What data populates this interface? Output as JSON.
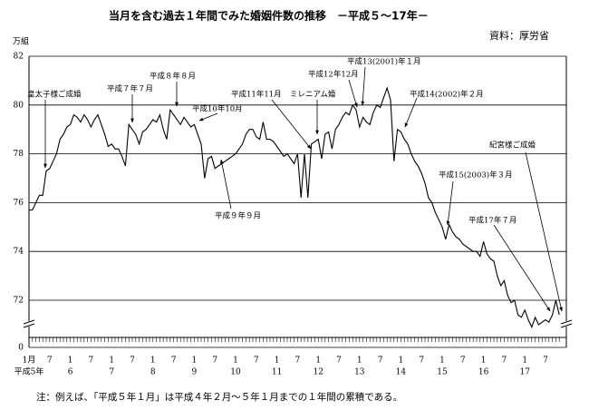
{
  "chart_data": {
    "type": "line",
    "title": "当月を含む過去１年間でみた婚姻件数の推移　－平成５～17年－",
    "source": "資料：厚労省",
    "y_label": "万組",
    "note": "注：例えば、「平成５年１月」は平成４年２月～５年１月までの１年間の累積である。",
    "categories": [
      "1月",
      null,
      null,
      null,
      null,
      null,
      "7",
      null,
      null,
      null,
      null,
      null,
      "1",
      null,
      null,
      null,
      null,
      null,
      "7",
      null,
      null,
      null,
      null,
      null,
      "1",
      null,
      null,
      null,
      null,
      null,
      "7",
      null,
      null,
      null,
      null,
      null,
      "1",
      null,
      null,
      null,
      null,
      null,
      "7",
      null,
      null,
      null,
      null,
      null,
      "1",
      null,
      null,
      null,
      null,
      null,
      "7",
      null,
      null,
      null,
      null,
      null,
      "1",
      null,
      null,
      null,
      null,
      null,
      "7",
      null,
      null,
      null,
      null,
      null,
      "1",
      null,
      null,
      null,
      null,
      null,
      "7",
      null,
      null,
      null,
      null,
      null,
      "1",
      null,
      null,
      null,
      null,
      null,
      "7",
      null,
      null,
      null,
      null,
      null,
      "1",
      null,
      null,
      null,
      null,
      null,
      "7",
      null,
      null,
      null,
      null,
      null,
      "1",
      null,
      null,
      null,
      null,
      null,
      "7",
      null,
      null,
      null,
      null,
      null,
      "1",
      null,
      null,
      null,
      null,
      null,
      "7",
      null,
      null,
      null,
      null,
      null,
      "1",
      null,
      null,
      null,
      null,
      null,
      "7",
      null,
      null,
      null,
      null,
      null,
      "1",
      null,
      null,
      null,
      null,
      null,
      "7",
      null,
      null,
      null,
      null
    ],
    "category_groups": [
      "平成5年",
      "6",
      "7",
      "8",
      "9",
      "10",
      "11",
      "12",
      "13",
      "14",
      "15",
      "16",
      "17"
    ],
    "series": [
      {
        "name": "婚姻件数",
        "color": "#000000",
        "values": [
          75.7,
          75.7,
          76.0,
          76.3,
          76.3,
          77.3,
          77.4,
          77.7,
          78.0,
          78.6,
          78.8,
          79.1,
          79.2,
          79.6,
          79.5,
          79.3,
          79.6,
          79.4,
          79.1,
          79.4,
          79.6,
          79.2,
          78.8,
          78.3,
          78.4,
          78.2,
          78.2,
          77.9,
          77.5,
          79.2,
          79.0,
          78.8,
          78.4,
          78.9,
          79.0,
          79.2,
          79.4,
          79.3,
          79.6,
          79.0,
          78.6,
          79.8,
          79.6,
          79.4,
          79.2,
          79.5,
          79.3,
          79.1,
          79.2,
          78.8,
          78.4,
          77.0,
          77.8,
          77.9,
          77.4,
          77.5,
          77.6,
          77.7,
          77.8,
          77.9,
          78.0,
          78.2,
          78.4,
          78.8,
          79.0,
          79.0,
          78.7,
          78.6,
          79.3,
          78.6,
          78.6,
          78.5,
          78.3,
          78.1,
          77.9,
          78.0,
          77.8,
          77.6,
          78.0,
          76.2,
          78.0,
          76.2,
          78.4,
          78.5,
          78.6,
          77.8,
          78.8,
          78.9,
          78.2,
          79.0,
          79.2,
          79.5,
          79.7,
          79.6,
          80.0,
          79.8,
          79.1,
          79.5,
          79.3,
          79.2,
          79.7,
          80.0,
          79.9,
          80.3,
          80.7,
          80.2,
          77.7,
          79.0,
          78.9,
          78.6,
          78.4,
          78.0,
          77.7,
          77.5,
          77.2,
          76.8,
          76.2,
          76.0,
          75.6,
          75.3,
          75.0,
          74.5,
          75.1,
          74.8,
          74.6,
          74.5,
          74.3,
          74.2,
          74.1,
          74.0,
          74.0,
          73.8,
          74.4,
          73.9,
          73.7,
          73.6,
          73.0,
          72.6,
          72.8,
          72.2,
          71.9,
          72.0,
          71.4,
          71.3,
          71.6,
          71.2,
          70.9,
          71.3,
          71.0,
          71.1,
          71.2,
          71.1,
          71.4,
          72.0,
          71.4
        ]
      }
    ],
    "ylim": [
      0,
      82
    ],
    "yticks": [
      0,
      72,
      74,
      76,
      78,
      80,
      82
    ],
    "axis_break": true,
    "grid": true,
    "annotations": [
      "皇太子様ご成婚",
      "平成７年７月",
      "平成８年８月",
      "平成10年10月",
      "平成９年９月",
      "平成11年11月",
      "ミレニアム婚",
      "平成12年12月",
      "平成13(2001)年１月",
      "平成14(2002)年２月",
      "平成15(2003)年３月",
      "紀宮様ご成婚",
      "平成17年７月"
    ]
  }
}
